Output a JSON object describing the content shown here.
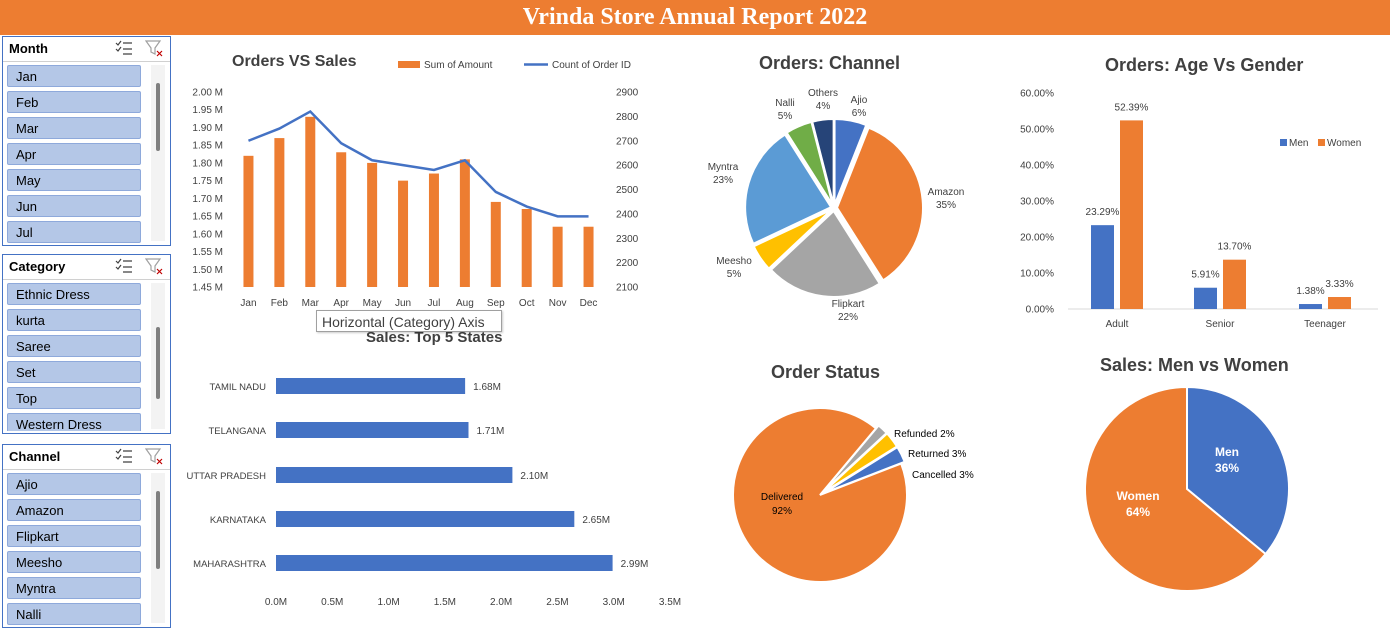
{
  "report_title": "Vrinda Store Annual Report 2022",
  "slicers": [
    {
      "title": "Month",
      "items": [
        "Jan",
        "Feb",
        "Mar",
        "Apr",
        "May",
        "Jun",
        "Jul"
      ]
    },
    {
      "title": "Category",
      "items": [
        "Ethnic Dress",
        "kurta",
        "Saree",
        "Set",
        "Top",
        "Western Dress"
      ]
    },
    {
      "title": "Channel",
      "items": [
        "Ajio",
        "Amazon",
        "Flipkart",
        "Meesho",
        "Myntra",
        "Nalli"
      ]
    }
  ],
  "tooltip": "Horizontal (Category) Axis",
  "colors": {
    "orange": "#ed7d31",
    "blue": "#4472c4",
    "gray": "#a5a5a5",
    "yellow": "#ffc000",
    "lightblue": "#5b9bd5",
    "green": "#70ad47",
    "navy": "#264478"
  },
  "chart_data": [
    {
      "id": "orders_vs_sales",
      "type": "bar",
      "title": "Orders VS Sales",
      "categories": [
        "Jan",
        "Feb",
        "Mar",
        "Apr",
        "May",
        "Jun",
        "Jul",
        "Aug",
        "Sep",
        "Oct",
        "Nov",
        "Dec"
      ],
      "series": [
        {
          "name": "Sum of Amount",
          "type": "bar",
          "axis": "left",
          "values": [
            1.82,
            1.87,
            1.93,
            1.83,
            1.8,
            1.75,
            1.77,
            1.81,
            1.69,
            1.67,
            1.62,
            1.62
          ]
        },
        {
          "name": "Count of Order ID",
          "type": "line",
          "axis": "right",
          "values": [
            2700,
            2750,
            2820,
            2690,
            2620,
            2600,
            2580,
            2620,
            2490,
            2430,
            2390,
            2390
          ]
        }
      ],
      "y_ticks": [
        "2.00 M",
        "1.95 M",
        "1.90 M",
        "1.85 M",
        "1.80 M",
        "1.75 M",
        "1.70 M",
        "1.65 M",
        "1.60 M",
        "1.55 M",
        "1.50 M",
        "1.45 M"
      ],
      "ylim": [
        1.45,
        2.0
      ],
      "y2_ticks": [
        "2900",
        "2800",
        "2700",
        "2600",
        "2500",
        "2400",
        "2300",
        "2200",
        "2100"
      ],
      "y2lim": [
        2100,
        2900
      ],
      "legend": "top-right"
    },
    {
      "id": "orders_channel",
      "type": "pie",
      "title": "Orders: Channel",
      "slices": [
        {
          "name": "Ajio",
          "label": "6%",
          "value": 6,
          "color": "#4472c4"
        },
        {
          "name": "Amazon",
          "label": "35%",
          "value": 35,
          "color": "#ed7d31"
        },
        {
          "name": "Flipkart",
          "label": "22%",
          "value": 22,
          "color": "#a5a5a5"
        },
        {
          "name": "Meesho",
          "label": "5%",
          "value": 5,
          "color": "#ffc000"
        },
        {
          "name": "Myntra",
          "label": "23%",
          "value": 23,
          "color": "#5b9bd5"
        },
        {
          "name": "Nalli",
          "label": "5%",
          "value": 5,
          "color": "#70ad47"
        },
        {
          "name": "Others",
          "label": "4%",
          "value": 4,
          "color": "#264478"
        }
      ]
    },
    {
      "id": "age_vs_gender",
      "type": "bar",
      "title": "Orders: Age Vs Gender",
      "categories": [
        "Adult",
        "Senior",
        "Teenager"
      ],
      "series": [
        {
          "name": "Men",
          "values": [
            23.29,
            5.91,
            1.38
          ],
          "labels": [
            "23.29%",
            "5.91%",
            "1.38%"
          ],
          "color": "#4472c4"
        },
        {
          "name": "Women",
          "values": [
            52.39,
            13.7,
            3.33
          ],
          "labels": [
            "52.39%",
            "13.70%",
            "3.33%"
          ],
          "color": "#ed7d31"
        }
      ],
      "y_ticks": [
        "60.00%",
        "50.00%",
        "40.00%",
        "30.00%",
        "20.00%",
        "10.00%",
        "0.00%"
      ],
      "ylim": [
        0,
        60
      ],
      "legend": "top-right"
    },
    {
      "id": "top5_states",
      "type": "bar",
      "orientation": "horizontal",
      "title": "Sales: Top 5 States",
      "categories": [
        "TAMIL NADU",
        "TELANGANA",
        "UTTAR PRADESH",
        "KARNATAKA",
        "MAHARASHTRA"
      ],
      "values": [
        1.68,
        1.71,
        2.1,
        2.65,
        2.99
      ],
      "labels": [
        "1.68M",
        "1.71M",
        "2.10M",
        "2.65M",
        "2.99M"
      ],
      "x_ticks": [
        "0.0M",
        "0.5M",
        "1.0M",
        "1.5M",
        "2.0M",
        "2.5M",
        "3.0M",
        "3.5M"
      ],
      "xlim": [
        0,
        3.5
      ]
    },
    {
      "id": "order_status",
      "type": "pie",
      "title": "Order Status",
      "slices": [
        {
          "name": "Refunded",
          "label": "Refunded 2%",
          "value": 2,
          "color": "#a5a5a5"
        },
        {
          "name": "Returned",
          "label": "Returned 3%",
          "value": 3,
          "color": "#ffc000"
        },
        {
          "name": "Cancelled",
          "label": "Cancelled 3%",
          "value": 3,
          "color": "#4472c4"
        },
        {
          "name": "Delivered",
          "label": "92%",
          "value": 92,
          "color": "#ed7d31"
        }
      ]
    },
    {
      "id": "men_vs_women",
      "type": "pie",
      "title": "Sales: Men vs Women",
      "slices": [
        {
          "name": "Men",
          "label": "36%",
          "value": 36,
          "color": "#4472c4"
        },
        {
          "name": "Women",
          "label": "64%",
          "value": 64,
          "color": "#ed7d31"
        }
      ]
    }
  ]
}
